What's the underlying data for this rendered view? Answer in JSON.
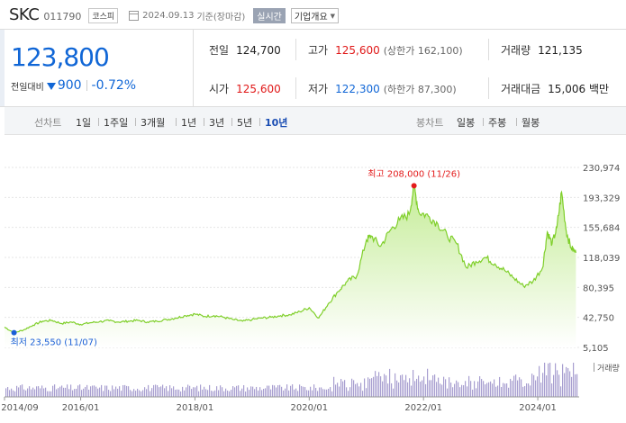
{
  "header": {
    "company_name": "SKC",
    "company_code": "011790",
    "market_badge": "코스피",
    "date": "2024.09.13",
    "close_label": "기준(장마감)",
    "realtime_button": "실시간",
    "overview_button": "기업개요"
  },
  "price": {
    "current": "123,800",
    "change_label": "전일대비",
    "change_amount": "900",
    "change_rate": "-0.72%",
    "prev_close_label": "전일",
    "prev_close": "124,700",
    "high_label": "고가",
    "high": "125,600",
    "upper_limit_label": "(상한가 162,100)",
    "volume_label": "거래량",
    "volume": "121,135",
    "open_label": "시가",
    "open": "125,600",
    "low_label": "저가",
    "low": "122,300",
    "lower_limit_label": "(하한가 87,300)",
    "trade_value_label": "거래대금",
    "trade_value": "15,006 백만"
  },
  "period_bar": {
    "line_chart_label": "선차트",
    "line_periods": [
      "1일",
      "1주일",
      "3개월",
      "1년",
      "3년",
      "5년",
      "10년"
    ],
    "active_period": "10년",
    "candle_chart_label": "봉차트",
    "candle_periods": [
      "일봉",
      "주봉",
      "월봉"
    ]
  },
  "colors": {
    "line": "#7fcf2a",
    "area_top": "#c4ec96",
    "area_bottom": "#ffffff",
    "volume": "#8b7fc0",
    "high_marker": "#e31b1b",
    "low_marker": "#1a5fd6",
    "price_blue": "#1066d6",
    "price_red": "#e01818"
  },
  "chart_data": {
    "type": "area",
    "y_ticks": [
      "230,974",
      "193,329",
      "155,684",
      "118,039",
      "80,395",
      "42,750",
      "5,105"
    ],
    "ylim": [
      5105,
      230974
    ],
    "x_ticks": [
      "2014/09",
      "2016/01",
      "2018/01",
      "2020/01",
      "2022/01",
      "2024/01"
    ],
    "volume_label": "거래량",
    "high_annotation": "최고 208,000 (11/26)",
    "low_annotation": "최저 23,550 (11/07)",
    "series": [
      {
        "points": [
          [
            "2014-09",
            30500
          ],
          [
            "2014-11",
            23550
          ],
          [
            "2015-01",
            27000
          ],
          [
            "2015-03",
            33000
          ],
          [
            "2015-05",
            38000
          ],
          [
            "2015-07",
            39000
          ],
          [
            "2015-09",
            35000
          ],
          [
            "2015-11",
            37000
          ],
          [
            "2016-01",
            34000
          ],
          [
            "2016-03",
            36000
          ],
          [
            "2016-05",
            37500
          ],
          [
            "2016-07",
            38500
          ],
          [
            "2016-09",
            37000
          ],
          [
            "2016-11",
            38000
          ],
          [
            "2017-01",
            39000
          ],
          [
            "2017-03",
            37000
          ],
          [
            "2017-05",
            38000
          ],
          [
            "2017-07",
            40000
          ],
          [
            "2017-09",
            42000
          ],
          [
            "2017-11",
            45000
          ],
          [
            "2018-01",
            47000
          ],
          [
            "2018-03",
            44000
          ],
          [
            "2018-05",
            45000
          ],
          [
            "2018-07",
            43000
          ],
          [
            "2018-09",
            40000
          ],
          [
            "2018-11",
            38000
          ],
          [
            "2019-01",
            40000
          ],
          [
            "2019-03",
            42000
          ],
          [
            "2019-05",
            43000
          ],
          [
            "2019-07",
            45000
          ],
          [
            "2019-09",
            46000
          ],
          [
            "2019-11",
            50000
          ],
          [
            "2020-01",
            55000
          ],
          [
            "2020-03",
            42000
          ],
          [
            "2020-05",
            60000
          ],
          [
            "2020-07",
            75000
          ],
          [
            "2020-09",
            88000
          ],
          [
            "2020-11",
            95000
          ],
          [
            "2021-01",
            140000
          ],
          [
            "2021-02",
            145000
          ],
          [
            "2021-04",
            132000
          ],
          [
            "2021-06",
            152000
          ],
          [
            "2021-08",
            165000
          ],
          [
            "2021-10",
            172000
          ],
          [
            "2021-11",
            208000
          ],
          [
            "2021-12",
            175000
          ],
          [
            "2022-02",
            170000
          ],
          [
            "2022-04",
            160000
          ],
          [
            "2022-06",
            145000
          ],
          [
            "2022-08",
            135000
          ],
          [
            "2022-10",
            105000
          ],
          [
            "2022-12",
            113000
          ],
          [
            "2023-02",
            118000
          ],
          [
            "2023-04",
            110000
          ],
          [
            "2023-06",
            102000
          ],
          [
            "2023-08",
            92000
          ],
          [
            "2023-10",
            82000
          ],
          [
            "2023-12",
            88000
          ],
          [
            "2024-02",
            105000
          ],
          [
            "2024-03",
            150000
          ],
          [
            "2024-04",
            135000
          ],
          [
            "2024-05",
            155000
          ],
          [
            "2024-06",
            200000
          ],
          [
            "2024-07",
            150000
          ],
          [
            "2024-08",
            130000
          ],
          [
            "2024-09",
            123800
          ]
        ]
      }
    ]
  }
}
